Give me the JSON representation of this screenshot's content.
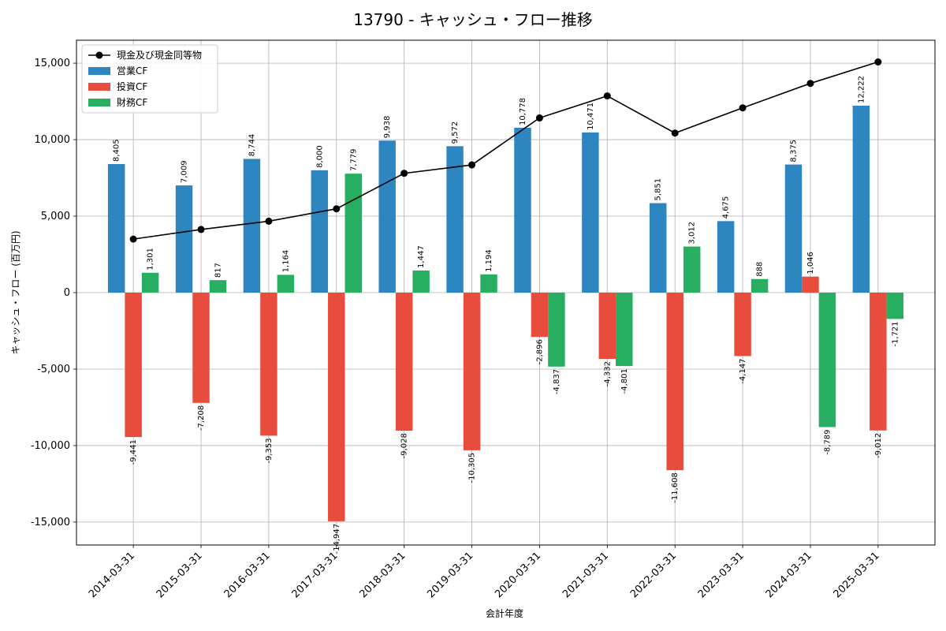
{
  "chart_data": {
    "type": "bar",
    "title": "13790 - キャッシュ・フロー推移",
    "xlabel": "会計年度",
    "ylabel": "キャッシュ・フロー (百万円)",
    "categories": [
      "2014-03-31",
      "2015-03-31",
      "2016-03-31",
      "2017-03-31",
      "2018-03-31",
      "2019-03-31",
      "2020-03-31",
      "2021-03-31",
      "2022-03-31",
      "2023-03-31",
      "2024-03-31",
      "2025-03-31"
    ],
    "ylim": [
      -16500,
      16500
    ],
    "yticks": [
      -15000,
      -10000,
      -5000,
      0,
      5000,
      10000,
      15000
    ],
    "ytick_labels": [
      "-15,000",
      "-10,000",
      "-5,000",
      "0",
      "5,000",
      "10,000",
      "15,000"
    ],
    "grid": true,
    "legend_position": "top-left",
    "series": [
      {
        "name": "営業CF",
        "color": "#2e86c1",
        "values": [
          8405,
          7009,
          8744,
          8000,
          9938,
          9572,
          10778,
          10471,
          5851,
          4675,
          8375,
          12222
        ],
        "labels": [
          "8,405",
          "7,009",
          "8,744",
          "8,000",
          "9,938",
          "9,572",
          "10,778",
          "10,471",
          "5,851",
          "4,675",
          "8,375",
          "12,222"
        ]
      },
      {
        "name": "投資CF",
        "color": "#e74c3c",
        "values": [
          -9441,
          -7208,
          -9353,
          -14947,
          -9028,
          -10305,
          -2896,
          -4332,
          -11608,
          -4147,
          1046,
          -9012
        ],
        "labels": [
          "-9,441",
          "-7,208",
          "-9,353",
          "-14,947",
          "-9,028",
          "-10,305",
          "-2,896",
          "-4,332",
          "-11,608",
          "-4,147",
          "1,046",
          "-9,012"
        ]
      },
      {
        "name": "財務CF",
        "color": "#27ae60",
        "values": [
          1301,
          817,
          1164,
          7779,
          1447,
          1194,
          -4837,
          -4801,
          3012,
          888,
          -8789,
          -1721
        ],
        "labels": [
          "1,301",
          "817",
          "1,164",
          "7,779",
          "1,447",
          "1,194",
          "-4,837",
          "-4,801",
          "3,012",
          "888",
          "-8,789",
          "-1,721"
        ]
      }
    ],
    "line": {
      "name": "現金及び現金同等物",
      "color": "#000000",
      "values": [
        3500,
        4130,
        4670,
        5480,
        7800,
        8350,
        11420,
        12860,
        10430,
        12080,
        13680,
        15080
      ]
    }
  }
}
